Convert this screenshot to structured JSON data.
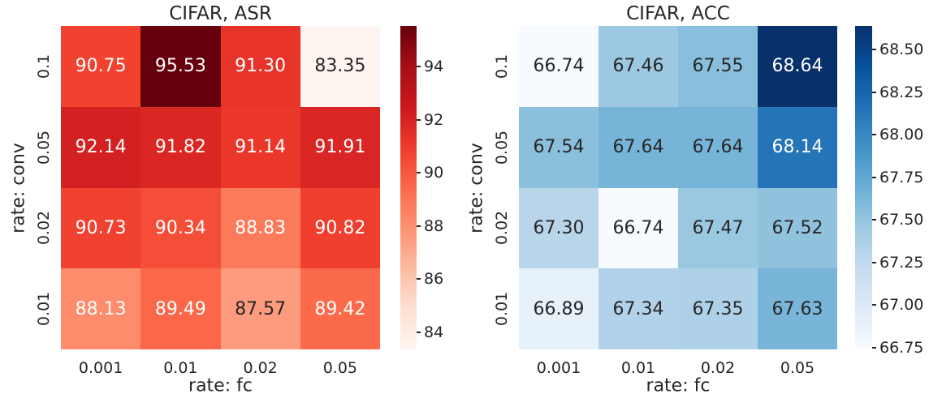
{
  "page": {
    "background": "#ffffff"
  },
  "style": {
    "text_color": "#262626",
    "annotation_light": "#ffffff",
    "annotation_dark": "#262626",
    "luminance_threshold": 0.408
  },
  "colormaps": {
    "Reds": [
      [
        0.0,
        "#fff5f0"
      ],
      [
        0.125,
        "#fee0d2"
      ],
      [
        0.25,
        "#fcbba1"
      ],
      [
        0.375,
        "#fc9272"
      ],
      [
        0.5,
        "#fb6a4a"
      ],
      [
        0.625,
        "#ef3b2c"
      ],
      [
        0.75,
        "#cb181d"
      ],
      [
        0.875,
        "#a50f15"
      ],
      [
        1.0,
        "#67000d"
      ]
    ],
    "Blues": [
      [
        0.0,
        "#f7fbff"
      ],
      [
        0.125,
        "#deebf7"
      ],
      [
        0.25,
        "#c6dbef"
      ],
      [
        0.375,
        "#9ecae1"
      ],
      [
        0.5,
        "#6baed6"
      ],
      [
        0.625,
        "#4292c6"
      ],
      [
        0.75,
        "#2171b5"
      ],
      [
        0.875,
        "#08519c"
      ],
      [
        1.0,
        "#08306b"
      ]
    ]
  },
  "chart_data": [
    {
      "type": "heatmap",
      "title": "CIFAR, ASR",
      "xlabel": "rate: fc",
      "ylabel": "rate: conv",
      "x_ticklabels": [
        "0.001",
        "0.01",
        "0.02",
        "0.05"
      ],
      "y_ticklabels": [
        "0.1",
        "0.05",
        "0.02",
        "0.01"
      ],
      "values": [
        [
          90.75,
          95.53,
          91.3,
          83.35
        ],
        [
          92.14,
          91.82,
          91.14,
          91.91
        ],
        [
          90.73,
          90.34,
          88.83,
          90.82
        ],
        [
          88.13,
          89.49,
          87.57,
          89.42
        ]
      ],
      "annotation_decimals": 2,
      "vmin": 83.35,
      "vmax": 95.53,
      "colormap": "Reds",
      "colorbar_ticks": [
        {
          "value": 94,
          "label": "94"
        },
        {
          "value": 92,
          "label": "92"
        },
        {
          "value": 90,
          "label": "90"
        },
        {
          "value": 88,
          "label": "88"
        },
        {
          "value": 86,
          "label": "86"
        },
        {
          "value": 84,
          "label": "84"
        }
      ],
      "legend_position": "right-colorbar",
      "grid": false
    },
    {
      "type": "heatmap",
      "title": "CIFAR, ACC",
      "xlabel": "rate: fc",
      "ylabel": "rate: conv",
      "x_ticklabels": [
        "0.001",
        "0.01",
        "0.02",
        "0.05"
      ],
      "y_ticklabels": [
        "0.1",
        "0.05",
        "0.02",
        "0.01"
      ],
      "values": [
        [
          66.74,
          67.46,
          67.55,
          68.64
        ],
        [
          67.54,
          67.64,
          67.64,
          68.14
        ],
        [
          67.3,
          66.74,
          67.47,
          67.52
        ],
        [
          66.89,
          67.34,
          67.35,
          67.63
        ]
      ],
      "annotation_decimals": 2,
      "vmin": 66.74,
      "vmax": 68.64,
      "colormap": "Blues",
      "colorbar_ticks": [
        {
          "value": 68.5,
          "label": "68.50"
        },
        {
          "value": 68.25,
          "label": "68.25"
        },
        {
          "value": 68.0,
          "label": "68.00"
        },
        {
          "value": 67.75,
          "label": "67.75"
        },
        {
          "value": 67.5,
          "label": "67.50"
        },
        {
          "value": 67.25,
          "label": "67.25"
        },
        {
          "value": 67.0,
          "label": "67.00"
        },
        {
          "value": 66.75,
          "label": "66.75"
        }
      ],
      "legend_position": "right-colorbar",
      "grid": false
    }
  ]
}
